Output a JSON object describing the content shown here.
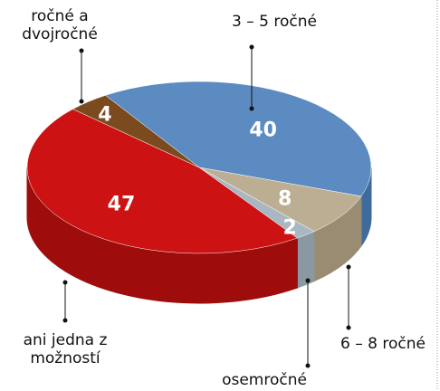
{
  "chart_data": {
    "type": "pie",
    "categories": [
      "3 – 5 ročné",
      "6 – 8 ročné",
      "osemročné",
      "ani jedna z možností",
      "ročné a dvojročné"
    ],
    "values": [
      40,
      8,
      2,
      47,
      4
    ],
    "colors": [
      "#5b8bc1",
      "#bcae93",
      "#a8b7c1",
      "#cc1212",
      "#7b4a1f"
    ],
    "side_colors": [
      "#3f6a9c",
      "#9a8c72",
      "#8a98a2",
      "#9e0c0c",
      "#5a3414"
    ]
  }
}
